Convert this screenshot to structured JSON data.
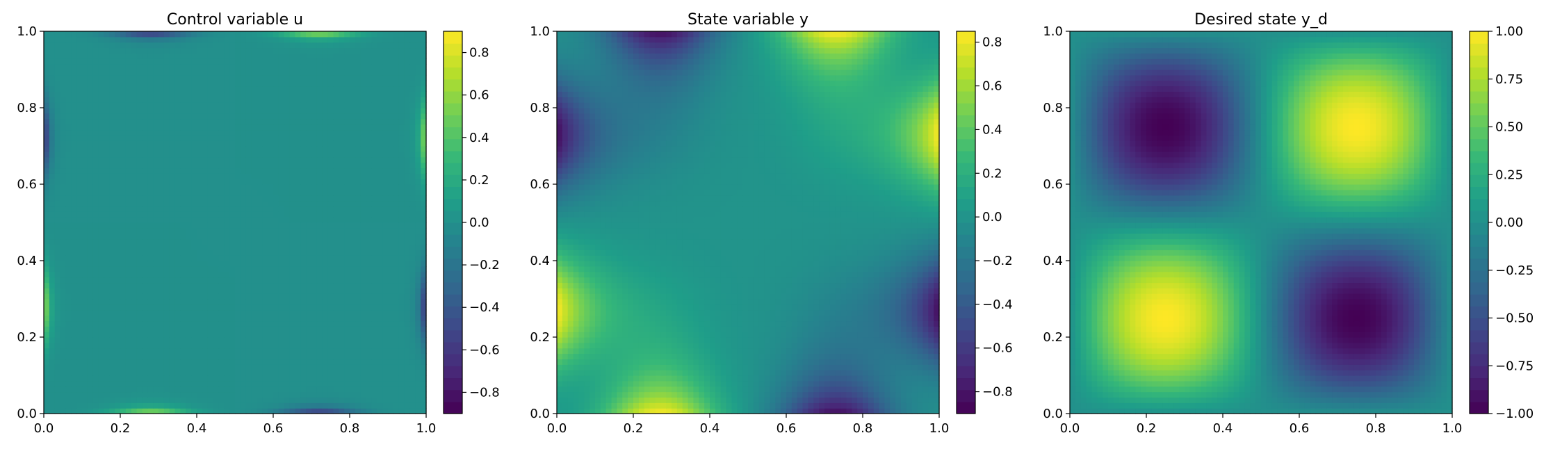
{
  "chart_data": [
    {
      "type": "heatmap",
      "title": "Control variable u",
      "field": "control",
      "xlim": [
        0,
        1
      ],
      "ylim": [
        0,
        1
      ],
      "xticks": [
        "0.0",
        "0.2",
        "0.4",
        "0.6",
        "0.8",
        "1.0"
      ],
      "yticks": [
        "0.0",
        "0.2",
        "0.4",
        "0.6",
        "0.8",
        "1.0"
      ],
      "colormap": "viridis",
      "color_range": [
        -0.9,
        0.9
      ],
      "colorbar_ticks": [
        "−0.8",
        "−0.6",
        "−0.4",
        "−0.2",
        "0.0",
        "0.2",
        "0.4",
        "0.6",
        "0.8"
      ],
      "colorbar_values": [
        -0.8,
        -0.6,
        -0.4,
        -0.2,
        0.0,
        0.2,
        0.4,
        0.6,
        0.8
      ],
      "description": "Nearly zero everywhere; peaks only in thin boundary layers at the domain edges (+0.85 at bottom x≈0.3, top x≈0.7, left y≈0.3, right y≈0.7; −0.85 at top x≈0.3, bottom x≈0.7, left y≈0.7, right y≈0.3)"
    },
    {
      "type": "heatmap",
      "title": "State variable y",
      "field": "state",
      "xlim": [
        0,
        1
      ],
      "ylim": [
        0,
        1
      ],
      "xticks": [
        "0.0",
        "0.2",
        "0.4",
        "0.6",
        "0.8",
        "1.0"
      ],
      "yticks": [
        "0.0",
        "0.2",
        "0.4",
        "0.6",
        "0.8",
        "1.0"
      ],
      "colormap": "viridis",
      "color_range": [
        -0.9,
        0.85
      ],
      "colorbar_ticks": [
        "−0.8",
        "−0.6",
        "−0.4",
        "−0.2",
        "0.0",
        "0.2",
        "0.4",
        "0.6",
        "0.8"
      ],
      "colorbar_values": [
        -0.8,
        -0.6,
        -0.4,
        -0.2,
        0.0,
        0.2,
        0.4,
        0.6,
        0.8
      ],
      "description": "Maxima (+0.85) on the bottom edge near x≈0.27, top edge near x≈0.73, left edge near y≈0.27, right edge near y≈0.73; minima (−0.85) at top x≈0.27, bottom x≈0.73, left y≈0.73, right y≈0.27; about 0 in the center"
    },
    {
      "type": "heatmap",
      "title": "Desired state y_d",
      "field": "desired",
      "formula": "sin(2πx)·sin(2πy)",
      "xlim": [
        0,
        1
      ],
      "ylim": [
        0,
        1
      ],
      "xticks": [
        "0.0",
        "0.2",
        "0.4",
        "0.6",
        "0.8",
        "1.0"
      ],
      "yticks": [
        "0.0",
        "0.2",
        "0.4",
        "0.6",
        "0.8",
        "1.0"
      ],
      "colormap": "viridis",
      "color_range": [
        -1.0,
        1.0
      ],
      "colorbar_ticks": [
        "−1.00",
        "−0.75",
        "−0.50",
        "−0.25",
        "0.00",
        "0.25",
        "0.50",
        "0.75",
        "1.00"
      ],
      "colorbar_values": [
        -1.0,
        -0.75,
        -0.5,
        -0.25,
        0.0,
        0.25,
        0.5,
        0.75,
        1.0
      ],
      "description": "Maxima +1 at (0.25, 0.25) and (0.75, 0.75); minima −1 at (0.25, 0.75) and (0.75, 0.25)"
    }
  ]
}
